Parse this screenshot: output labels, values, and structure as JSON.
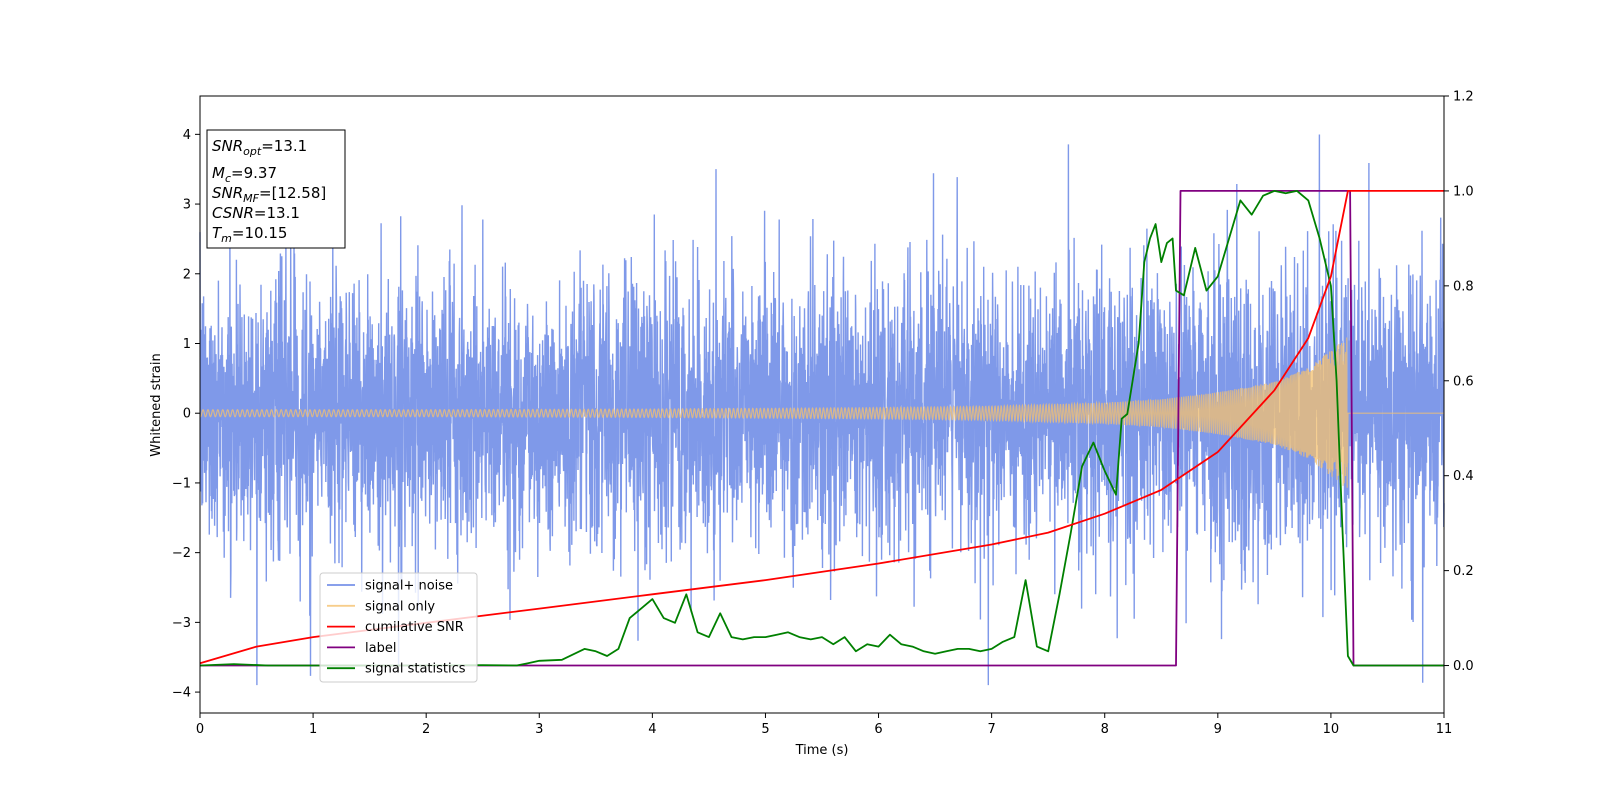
{
  "chart_data": {
    "type": "line",
    "xlabel": "Time (s)",
    "ylabel": "Whitened strain",
    "xlim": [
      0,
      11
    ],
    "ylim": [
      -4.3,
      4.55
    ],
    "y2lim": [
      -0.1,
      1.2
    ],
    "x_ticks": [
      "0",
      "1",
      "2",
      "3",
      "4",
      "5",
      "6",
      "7",
      "8",
      "9",
      "10",
      "11"
    ],
    "x_tick_values": [
      0,
      1,
      2,
      3,
      4,
      5,
      6,
      7,
      8,
      9,
      10,
      11
    ],
    "y_ticks": [
      "−4",
      "−3",
      "−2",
      "−1",
      "0",
      "1",
      "2",
      "3",
      "4"
    ],
    "y_tick_values": [
      -4,
      -3,
      -2,
      -1,
      0,
      1,
      2,
      3,
      4
    ],
    "y2_ticks": [
      "0.0",
      "0.2",
      "0.4",
      "0.6",
      "0.8",
      "1.0",
      "1.2"
    ],
    "y2_tick_values": [
      0.0,
      0.2,
      0.4,
      0.6,
      0.8,
      1.0,
      1.2
    ],
    "grid": false,
    "legend_position": "lower-left",
    "info_box": {
      "snr_opt_base": "SNR",
      "snr_opt_sub": "opt",
      "snr_opt_value": "=13.1",
      "mc_base": "M",
      "mc_sub": "c",
      "mc_value": "=9.37",
      "snr_mf_base": "SNR",
      "snr_mf_sub": "MF",
      "snr_mf_value": "=[12.58]",
      "csnr_base": "CSNR",
      "csnr_value": "=13.1",
      "tm_base": "T",
      "tm_sub": "m",
      "tm_value": "=10.15"
    },
    "series": [
      {
        "name": "signal+ noise",
        "color": "#7893e8",
        "axis": "left",
        "description_values": {
          "typical_range": [
            -2.4,
            2.4
          ],
          "max_spike": 4.15,
          "min_spike": -3.9
        }
      },
      {
        "name": "signal only",
        "color": "#f5c16e",
        "axis": "left",
        "envelope": {
          "t": [
            0,
            2,
            4,
            6,
            7,
            8,
            8.5,
            9,
            9.5,
            9.8,
            10.0,
            10.15
          ],
          "amp": [
            0.05,
            0.05,
            0.06,
            0.08,
            0.1,
            0.15,
            0.2,
            0.3,
            0.45,
            0.65,
            0.9,
            1.1
          ]
        },
        "merger_time": 10.15
      },
      {
        "name": "cumilative SNR",
        "color": "#ff0000",
        "axis": "right",
        "x": [
          0,
          0.5,
          1,
          2,
          3,
          4,
          5,
          6,
          7,
          7.5,
          8,
          8.5,
          9,
          9.5,
          9.8,
          10.0,
          10.15,
          11
        ],
        "y": [
          0.005,
          0.04,
          0.06,
          0.09,
          0.12,
          0.15,
          0.18,
          0.215,
          0.255,
          0.28,
          0.32,
          0.37,
          0.45,
          0.58,
          0.69,
          0.82,
          1.0,
          1.0
        ]
      },
      {
        "name": "label",
        "color": "#800080",
        "axis": "right",
        "x": [
          0,
          8.63,
          8.67,
          10.17,
          10.2,
          11
        ],
        "y": [
          0,
          0,
          1,
          1,
          0,
          0
        ]
      },
      {
        "name": "signal statistics",
        "color": "#008000",
        "axis": "right",
        "x": [
          0,
          0.3,
          0.6,
          1,
          1.5,
          2,
          2.5,
          2.8,
          2.9,
          3.0,
          3.2,
          3.4,
          3.5,
          3.6,
          3.7,
          3.8,
          3.9,
          4.0,
          4.1,
          4.2,
          4.3,
          4.4,
          4.5,
          4.6,
          4.7,
          4.8,
          4.9,
          5.0,
          5.1,
          5.2,
          5.3,
          5.4,
          5.5,
          5.6,
          5.7,
          5.8,
          5.9,
          6.0,
          6.1,
          6.2,
          6.3,
          6.4,
          6.5,
          6.6,
          6.7,
          6.8,
          6.9,
          7.0,
          7.1,
          7.2,
          7.3,
          7.4,
          7.5,
          7.6,
          7.7,
          7.8,
          7.9,
          8.0,
          8.1,
          8.15,
          8.2,
          8.3,
          8.35,
          8.4,
          8.45,
          8.5,
          8.55,
          8.6,
          8.63,
          8.7,
          8.8,
          8.9,
          9.0,
          9.1,
          9.2,
          9.3,
          9.4,
          9.5,
          9.6,
          9.7,
          9.8,
          9.9,
          10.0,
          10.05,
          10.1,
          10.15,
          10.2,
          11
        ],
        "y": [
          0.0,
          0.003,
          0.0,
          0.0,
          0.0,
          0.0,
          0.001,
          0.0,
          0.005,
          0.01,
          0.012,
          0.035,
          0.03,
          0.02,
          0.035,
          0.1,
          0.12,
          0.14,
          0.1,
          0.09,
          0.15,
          0.07,
          0.06,
          0.11,
          0.06,
          0.055,
          0.06,
          0.06,
          0.065,
          0.07,
          0.06,
          0.055,
          0.06,
          0.045,
          0.06,
          0.03,
          0.045,
          0.04,
          0.065,
          0.045,
          0.04,
          0.03,
          0.025,
          0.03,
          0.035,
          0.035,
          0.03,
          0.035,
          0.05,
          0.06,
          0.18,
          0.04,
          0.03,
          0.15,
          0.28,
          0.42,
          0.47,
          0.41,
          0.36,
          0.52,
          0.53,
          0.68,
          0.85,
          0.9,
          0.93,
          0.85,
          0.89,
          0.9,
          0.79,
          0.78,
          0.88,
          0.79,
          0.82,
          0.9,
          0.98,
          0.95,
          0.99,
          1.0,
          0.995,
          1.0,
          0.98,
          0.9,
          0.8,
          0.6,
          0.3,
          0.02,
          0.0,
          0.0
        ]
      }
    ]
  }
}
